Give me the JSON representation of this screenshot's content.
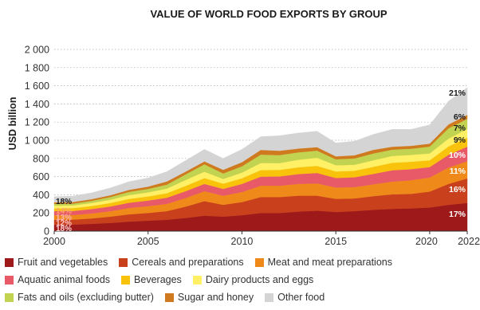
{
  "chart_data": {
    "type": "area",
    "stacked": true,
    "title": "VALUE OF WORLD FOOD EXPORTS BY GROUP",
    "ylabel": "USD billion",
    "xlabel": "",
    "ylim": [
      0,
      2000
    ],
    "yticks": [
      0,
      200,
      400,
      600,
      800,
      1000,
      1200,
      1400,
      1600,
      1800,
      2000
    ],
    "ytick_labels": [
      "0",
      "200",
      "400",
      "600",
      "800",
      "1 000",
      "1 200",
      "1 400",
      "1 600",
      "1 800",
      "2 000"
    ],
    "xticks": [
      2000,
      2005,
      2010,
      2015,
      2020,
      2022
    ],
    "xlim": [
      2000,
      2022
    ],
    "grid": "horizontal dotted",
    "legend": "bottom",
    "x": [
      2000,
      2001,
      2002,
      2003,
      2004,
      2005,
      2006,
      2007,
      2008,
      2009,
      2010,
      2011,
      2012,
      2013,
      2014,
      2015,
      2016,
      2017,
      2018,
      2019,
      2020,
      2021,
      2022
    ],
    "series": [
      {
        "name": "Fruit and vegetables",
        "color": "#9e1a1a",
        "values": [
          70,
          72,
          80,
          90,
          105,
          115,
          125,
          145,
          170,
          160,
          175,
          200,
          200,
          215,
          225,
          210,
          220,
          235,
          245,
          250,
          260,
          290,
          310
        ]
      },
      {
        "name": "Cereals and preparations",
        "color": "#c9401c",
        "values": [
          55,
          55,
          60,
          70,
          80,
          85,
          95,
          125,
          160,
          130,
          145,
          175,
          175,
          175,
          165,
          145,
          140,
          150,
          160,
          160,
          175,
          230,
          270
        ]
      },
      {
        "name": "Meat and meat preparations",
        "color": "#ef8a1a",
        "values": [
          50,
          50,
          55,
          60,
          70,
          75,
          80,
          95,
          110,
          100,
          110,
          125,
          125,
          130,
          135,
          125,
          125,
          130,
          140,
          150,
          155,
          180,
          190
        ]
      },
      {
        "name": "Aquatic animal foods",
        "color": "#e85a68",
        "values": [
          45,
          45,
          48,
          52,
          58,
          62,
          68,
          75,
          80,
          75,
          90,
          100,
          102,
          108,
          115,
          105,
          108,
          115,
          125,
          122,
          115,
          140,
          160
        ]
      },
      {
        "name": "Beverages",
        "color": "#f9c30c",
        "values": [
          30,
          31,
          34,
          38,
          42,
          45,
          50,
          58,
          64,
          58,
          62,
          72,
          72,
          75,
          78,
          72,
          72,
          78,
          82,
          82,
          75,
          92,
          100
        ]
      },
      {
        "name": "Dairy products and eggs",
        "color": "#fff066",
        "values": [
          30,
          30,
          33,
          36,
          42,
          45,
          50,
          65,
          70,
          52,
          62,
          78,
          75,
          82,
          90,
          68,
          65,
          72,
          75,
          75,
          75,
          85,
          95
        ]
      },
      {
        "name": "Fats and oils (excluding butter)",
        "color": "#c2d352",
        "values": [
          20,
          20,
          24,
          30,
          36,
          38,
          44,
          62,
          82,
          60,
          70,
          92,
          88,
          82,
          78,
          66,
          70,
          75,
          70,
          68,
          76,
          115,
          110
        ]
      },
      {
        "name": "Sugar and honey",
        "color": "#cf7a1e",
        "values": [
          18,
          18,
          18,
          20,
          22,
          25,
          35,
          30,
          32,
          40,
          45,
          52,
          48,
          42,
          38,
          32,
          35,
          40,
          32,
          32,
          32,
          42,
          45
        ]
      },
      {
        "name": "Other food",
        "color": "#d4d4d4",
        "values": [
          62,
          64,
          70,
          80,
          90,
          95,
          108,
          122,
          132,
          125,
          141,
          146,
          165,
          171,
          176,
          147,
          155,
          170,
          191,
          181,
          207,
          256,
          300
        ]
      }
    ],
    "annotations_2000": {
      "values": [
        "18%",
        "14%",
        "13%",
        "12%",
        "18%"
      ],
      "colors": [
        "#1a1a1a",
        "#ffa070",
        "#ffb3b3",
        "#ffc0c0",
        "#ffd0d0"
      ]
    },
    "annotations_2022": {
      "values": [
        "21%",
        "6%",
        "7%",
        "9%",
        "10%",
        "11%",
        "16%",
        "17%"
      ],
      "colors": [
        "#1a1a1a",
        "#1a1a1a",
        "#1a1a1a",
        "#1a1a1a",
        "#ffffff",
        "#ffffff",
        "#ffffff",
        "#ffffff"
      ]
    }
  }
}
